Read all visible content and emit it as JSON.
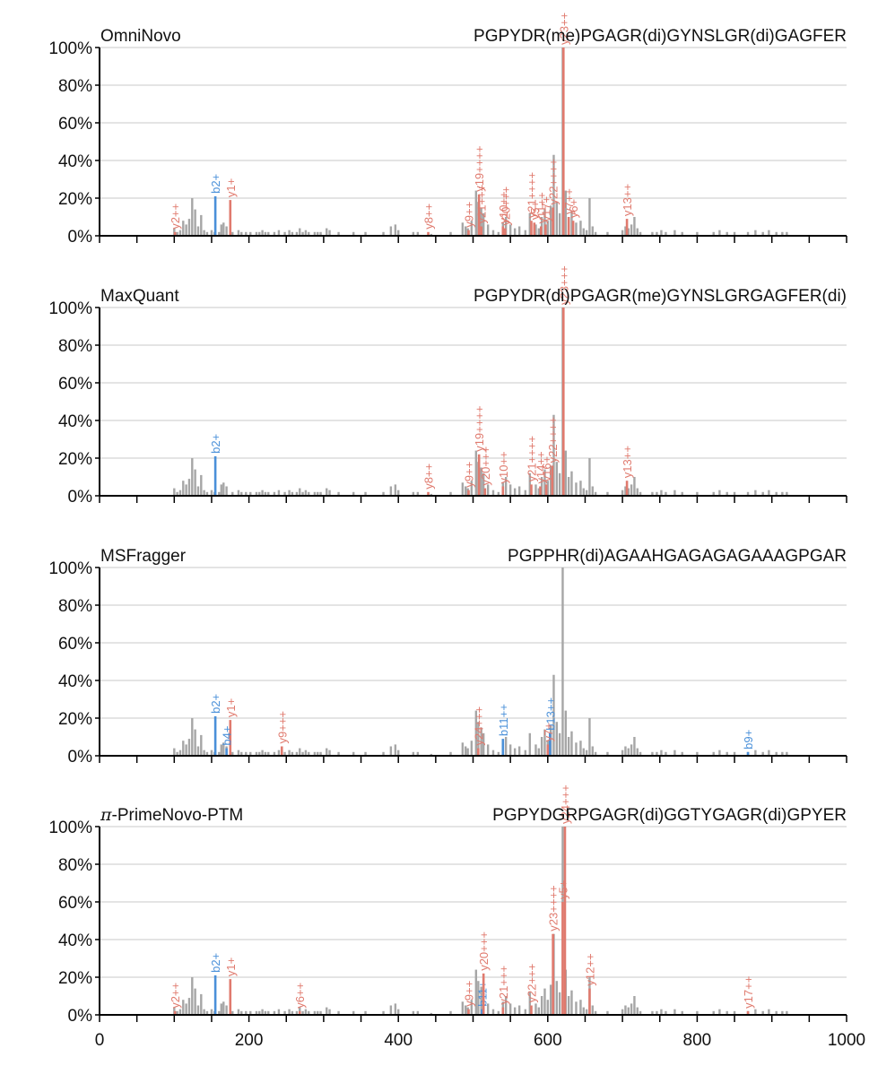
{
  "figure": {
    "x_tick_labels": [
      "0",
      "200",
      "400",
      "600",
      "800",
      "1000"
    ]
  },
  "colors": {
    "background_peak": "#a6a6a6",
    "b_ion": "#4a90d9",
    "y_ion": "#e07a6e",
    "grid": "#d4d4d4",
    "axis": "#000000"
  },
  "background_peaks": [
    [
      100,
      4
    ],
    [
      104,
      2
    ],
    [
      108,
      3
    ],
    [
      112,
      8
    ],
    [
      116,
      6
    ],
    [
      120,
      9
    ],
    [
      124,
      20
    ],
    [
      128,
      14
    ],
    [
      132,
      5
    ],
    [
      136,
      11
    ],
    [
      140,
      3
    ],
    [
      144,
      2
    ],
    [
      150,
      3
    ],
    [
      154,
      2
    ],
    [
      160,
      2
    ],
    [
      163,
      6
    ],
    [
      166,
      7
    ],
    [
      170,
      5
    ],
    [
      178,
      2
    ],
    [
      186,
      3
    ],
    [
      190,
      2
    ],
    [
      196,
      2
    ],
    [
      202,
      2
    ],
    [
      210,
      2
    ],
    [
      214,
      2
    ],
    [
      218,
      3
    ],
    [
      222,
      2
    ],
    [
      226,
      2
    ],
    [
      234,
      2
    ],
    [
      240,
      3
    ],
    [
      248,
      2
    ],
    [
      254,
      3
    ],
    [
      258,
      2
    ],
    [
      264,
      2
    ],
    [
      268,
      4
    ],
    [
      272,
      2
    ],
    [
      276,
      3
    ],
    [
      280,
      2
    ],
    [
      288,
      2
    ],
    [
      292,
      2
    ],
    [
      296,
      2
    ],
    [
      304,
      4
    ],
    [
      308,
      3
    ],
    [
      320,
      2
    ],
    [
      340,
      2
    ],
    [
      356,
      2
    ],
    [
      380,
      2
    ],
    [
      390,
      5
    ],
    [
      396,
      6
    ],
    [
      400,
      3
    ],
    [
      420,
      2
    ],
    [
      426,
      2
    ],
    [
      444,
      1
    ],
    [
      470,
      2
    ],
    [
      486,
      7
    ],
    [
      490,
      5
    ],
    [
      493,
      4
    ],
    [
      498,
      8
    ],
    [
      504,
      24
    ],
    [
      507,
      18
    ],
    [
      511,
      15
    ],
    [
      514,
      12
    ],
    [
      520,
      6
    ],
    [
      527,
      3
    ],
    [
      534,
      2
    ],
    [
      540,
      7
    ],
    [
      544,
      10
    ],
    [
      550,
      6
    ],
    [
      556,
      4
    ],
    [
      562,
      5
    ],
    [
      570,
      3
    ],
    [
      576,
      12
    ],
    [
      584,
      6
    ],
    [
      588,
      4
    ],
    [
      592,
      10
    ],
    [
      596,
      14
    ],
    [
      600,
      8
    ],
    [
      604,
      16
    ],
    [
      608,
      43
    ],
    [
      612,
      18
    ],
    [
      616,
      12
    ],
    [
      620,
      100
    ],
    [
      624,
      24
    ],
    [
      628,
      10
    ],
    [
      632,
      13
    ],
    [
      638,
      7
    ],
    [
      644,
      8
    ],
    [
      648,
      4
    ],
    [
      652,
      3
    ],
    [
      656,
      20
    ],
    [
      660,
      5
    ],
    [
      664,
      2
    ],
    [
      680,
      2
    ],
    [
      700,
      3
    ],
    [
      704,
      5
    ],
    [
      708,
      4
    ],
    [
      712,
      6
    ],
    [
      716,
      10
    ],
    [
      720,
      4
    ],
    [
      724,
      2
    ],
    [
      740,
      2
    ],
    [
      746,
      2
    ],
    [
      752,
      3
    ],
    [
      758,
      2
    ],
    [
      770,
      3
    ],
    [
      780,
      2
    ],
    [
      800,
      2
    ],
    [
      822,
      2
    ],
    [
      830,
      3
    ],
    [
      840,
      2
    ],
    [
      850,
      2
    ],
    [
      868,
      2
    ],
    [
      878,
      3
    ],
    [
      888,
      2
    ],
    [
      896,
      3
    ],
    [
      906,
      2
    ],
    [
      914,
      2
    ],
    [
      920,
      2
    ]
  ],
  "panels": [
    {
      "tool": "OmniNovo",
      "sequence": "PGPYDR(me)PGAGR(di)GYNSLGR(di)GAGFER",
      "annotations": [
        {
          "ion": "b",
          "label": "b2+",
          "mz": 155,
          "intensity": 21
        },
        {
          "ion": "y",
          "label": "y1+",
          "mz": 175,
          "intensity": 19
        },
        {
          "ion": "y",
          "label": "y2++",
          "mz": 101,
          "intensity": 2
        },
        {
          "ion": "y",
          "label": "y8++",
          "mz": 440,
          "intensity": 2
        },
        {
          "ion": "y",
          "label": "y9++",
          "mz": 494,
          "intensity": 3
        },
        {
          "ion": "y",
          "label": "y19++++",
          "mz": 508,
          "intensity": 22
        },
        {
          "ion": "y",
          "label": "y21+++",
          "mz": 511,
          "intensity": 5
        },
        {
          "ion": "y",
          "label": "y10++",
          "mz": 540,
          "intensity": 5
        },
        {
          "ion": "y",
          "label": "y20+++",
          "mz": 543,
          "intensity": 4
        },
        {
          "ion": "y",
          "label": "y21++++",
          "mz": 578,
          "intensity": 8
        },
        {
          "ion": "y",
          "label": "y5+",
          "mz": 582,
          "intensity": 7
        },
        {
          "ion": "y",
          "label": "y11++",
          "mz": 591,
          "intensity": 5
        },
        {
          "ion": "y",
          "label": "y17+",
          "mz": 597,
          "intensity": 6
        },
        {
          "ion": "y",
          "label": "y22++++",
          "mz": 607,
          "intensity": 15
        },
        {
          "ion": "y",
          "label": "y23++",
          "mz": 621,
          "intensity": 100
        },
        {
          "ion": "y",
          "label": "y7++",
          "mz": 628,
          "intensity": 10
        },
        {
          "ion": "y",
          "label": "y6+",
          "mz": 634,
          "intensity": 8
        },
        {
          "ion": "y",
          "label": "y13++",
          "mz": 706,
          "intensity": 9
        }
      ]
    },
    {
      "tool": "MaxQuant",
      "sequence": "PGPYDR(di)PGAGR(me)GYNSLGRGAGFER(di)",
      "annotations": [
        {
          "ion": "b",
          "label": "b2+",
          "mz": 155,
          "intensity": 21
        },
        {
          "ion": "y",
          "label": "y8++",
          "mz": 440,
          "intensity": 2
        },
        {
          "ion": "y",
          "label": "y9++",
          "mz": 494,
          "intensity": 3
        },
        {
          "ion": "y",
          "label": "y19++++",
          "mz": 508,
          "intensity": 22
        },
        {
          "ion": "y",
          "label": "y20+++",
          "mz": 516,
          "intensity": 4
        },
        {
          "ion": "y",
          "label": "y10++",
          "mz": 540,
          "intensity": 5
        },
        {
          "ion": "y",
          "label": "y21++++",
          "mz": 578,
          "intensity": 6
        },
        {
          "ion": "y",
          "label": "y14++",
          "mz": 590,
          "intensity": 5
        },
        {
          "ion": "y",
          "label": "y16+",
          "mz": 598,
          "intensity": 6
        },
        {
          "ion": "y",
          "label": "y22++++",
          "mz": 606,
          "intensity": 16
        },
        {
          "ion": "y",
          "label": "y23+++",
          "mz": 621,
          "intensity": 100
        },
        {
          "ion": "y",
          "label": "y13++",
          "mz": 706,
          "intensity": 8
        }
      ]
    },
    {
      "tool": "MSFragger",
      "sequence": "PGPPHR(di)AGAAHGAGAGAGAAAGPGAR",
      "annotations": [
        {
          "ion": "b",
          "label": "b2+",
          "mz": 155,
          "intensity": 21
        },
        {
          "ion": "y",
          "label": "y1+",
          "mz": 175,
          "intensity": 19
        },
        {
          "ion": "b",
          "label": "b4+",
          "mz": 170,
          "intensity": 4
        },
        {
          "ion": "y",
          "label": "y9+++",
          "mz": 244,
          "intensity": 5
        },
        {
          "ion": "y",
          "label": "y24+++",
          "mz": 507,
          "intensity": 4
        },
        {
          "ion": "b",
          "label": "b11++",
          "mz": 540,
          "intensity": 9
        },
        {
          "ion": "b",
          "label": "b13++",
          "mz": 603,
          "intensity": 12
        },
        {
          "ion": "y",
          "label": "y7+",
          "mz": 600,
          "intensity": 6
        },
        {
          "ion": "b",
          "label": "b9+",
          "mz": 868,
          "intensity": 2
        }
      ]
    },
    {
      "tool": "π-PrimeNovo-PTM",
      "sequence": "PGPYDGRPGAGR(di)GGTYGAGR(di)GPYER",
      "annotations": [
        {
          "ion": "b",
          "label": "b2+",
          "mz": 155,
          "intensity": 21
        },
        {
          "ion": "y",
          "label": "y1+",
          "mz": 175,
          "intensity": 19
        },
        {
          "ion": "y",
          "label": "y2++",
          "mz": 101,
          "intensity": 2
        },
        {
          "ion": "y",
          "label": "y6++",
          "mz": 268,
          "intensity": 2
        },
        {
          "ion": "y",
          "label": "y9++",
          "mz": 494,
          "intensity": 3
        },
        {
          "ion": "b",
          "label": "b11+",
          "mz": 512,
          "intensity": 3
        },
        {
          "ion": "y",
          "label": "y20+++",
          "mz": 514,
          "intensity": 22
        },
        {
          "ion": "y",
          "label": "y21+++",
          "mz": 540,
          "intensity": 4
        },
        {
          "ion": "y",
          "label": "y22+++",
          "mz": 578,
          "intensity": 5
        },
        {
          "ion": "y",
          "label": "y23++++",
          "mz": 607,
          "intensity": 43
        },
        {
          "ion": "y",
          "label": "y5+",
          "mz": 620,
          "intensity": 60
        },
        {
          "ion": "y",
          "label": "y24+++",
          "mz": 623,
          "intensity": 100
        },
        {
          "ion": "y",
          "label": "y12++",
          "mz": 656,
          "intensity": 14
        },
        {
          "ion": "y",
          "label": "y17++",
          "mz": 868,
          "intensity": 2
        }
      ]
    }
  ],
  "chart_data": [
    {
      "type": "bar",
      "title": "OmniNovo",
      "subtitle": "PGPYDR(me)PGAGR(di)GYNSLGR(di)GAGFER",
      "xlim": [
        0,
        1000
      ],
      "ylim": [
        0,
        100
      ],
      "y_tick_labels": [
        "0%",
        "20%",
        "40%",
        "60%",
        "80%",
        "100%"
      ],
      "grid": true,
      "series": [
        {
          "name": "b ions",
          "color": "#4a90d9",
          "x": [
            155
          ],
          "values": [
            21
          ]
        },
        {
          "name": "y ions",
          "color": "#e07a6e",
          "x": [
            175,
            101,
            440,
            494,
            508,
            511,
            540,
            543,
            578,
            582,
            591,
            597,
            607,
            621,
            628,
            634,
            706
          ],
          "values": [
            19,
            2,
            2,
            3,
            22,
            5,
            5,
            4,
            8,
            7,
            5,
            6,
            15,
            100,
            10,
            8,
            9
          ]
        }
      ]
    },
    {
      "type": "bar",
      "title": "MaxQuant",
      "subtitle": "PGPYDR(di)PGAGR(me)GYNSLGRGAGFER(di)",
      "xlim": [
        0,
        1000
      ],
      "ylim": [
        0,
        100
      ],
      "y_tick_labels": [
        "0%",
        "20%",
        "40%",
        "60%",
        "80%",
        "100%"
      ],
      "grid": true,
      "series": [
        {
          "name": "b ions",
          "color": "#4a90d9",
          "x": [
            155
          ],
          "values": [
            21
          ]
        },
        {
          "name": "y ions",
          "color": "#e07a6e",
          "x": [
            440,
            494,
            508,
            516,
            540,
            578,
            590,
            598,
            606,
            621,
            706
          ],
          "values": [
            2,
            3,
            22,
            4,
            5,
            6,
            5,
            6,
            16,
            100,
            8
          ]
        }
      ]
    },
    {
      "type": "bar",
      "title": "MSFragger",
      "subtitle": "PGPPHR(di)AGAAHGAGAGAGAAAGPGAR",
      "xlim": [
        0,
        1000
      ],
      "ylim": [
        0,
        100
      ],
      "y_tick_labels": [
        "0%",
        "20%",
        "40%",
        "60%",
        "80%",
        "100%"
      ],
      "grid": true,
      "series": [
        {
          "name": "b ions",
          "color": "#4a90d9",
          "x": [
            155,
            170,
            540,
            603,
            868
          ],
          "values": [
            21,
            4,
            9,
            12,
            2
          ]
        },
        {
          "name": "y ions",
          "color": "#e07a6e",
          "x": [
            175,
            244,
            507,
            600
          ],
          "values": [
            19,
            5,
            4,
            6
          ]
        }
      ]
    },
    {
      "type": "bar",
      "title": "π-PrimeNovo-PTM",
      "subtitle": "PGPYDGRPGAGR(di)GGTYGAGR(di)GPYER",
      "xlim": [
        0,
        1000
      ],
      "ylim": [
        0,
        100
      ],
      "y_tick_labels": [
        "0%",
        "20%",
        "40%",
        "60%",
        "80%",
        "100%"
      ],
      "x_tick_labels": [
        "0",
        "200",
        "400",
        "600",
        "800",
        "1000"
      ],
      "grid": true,
      "series": [
        {
          "name": "b ions",
          "color": "#4a90d9",
          "x": [
            155,
            512
          ],
          "values": [
            21,
            3
          ]
        },
        {
          "name": "y ions",
          "color": "#e07a6e",
          "x": [
            175,
            101,
            268,
            494,
            514,
            540,
            578,
            607,
            620,
            623,
            656,
            868
          ],
          "values": [
            19,
            2,
            2,
            3,
            22,
            4,
            5,
            43,
            60,
            100,
            14,
            2
          ]
        }
      ]
    }
  ]
}
